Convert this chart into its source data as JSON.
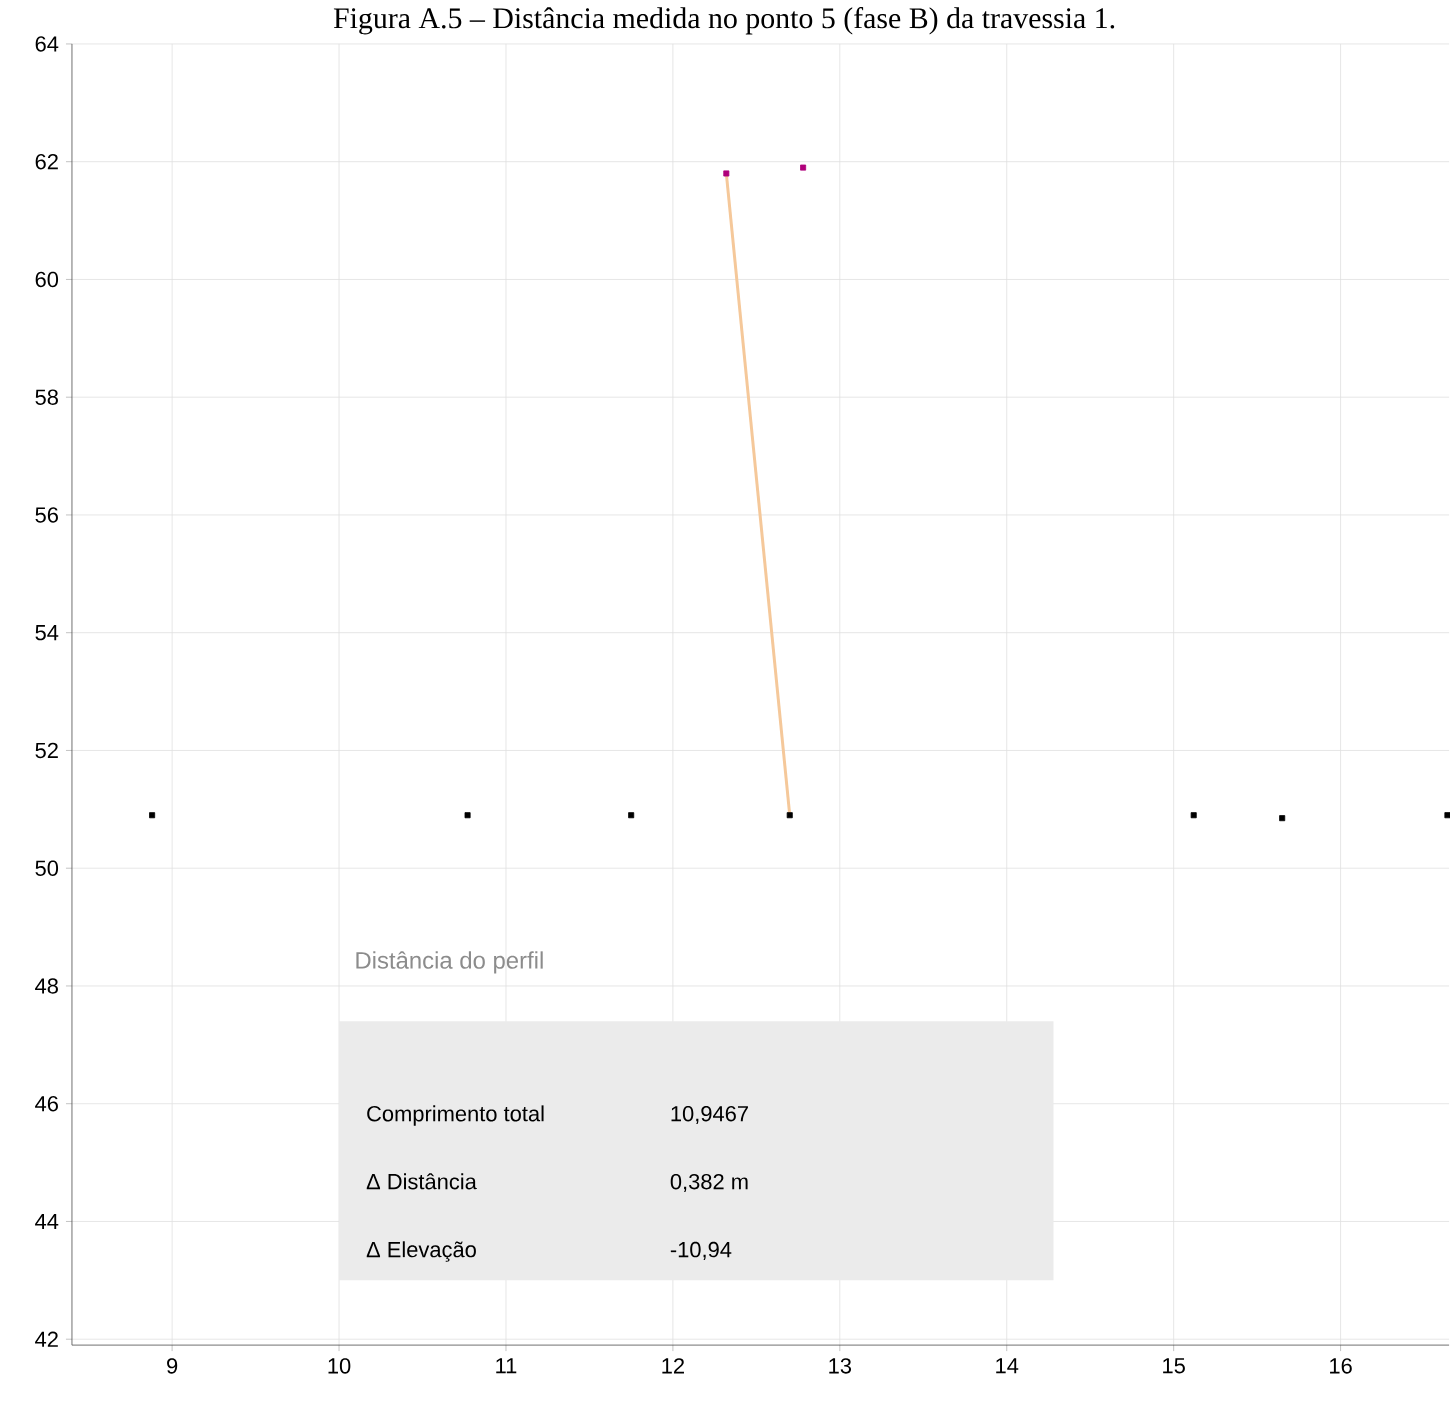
{
  "chart_data": {
    "type": "scatter",
    "title": "Figura A.5 – Distância medida no ponto 5 (fase B) da travessia 1.",
    "xlim": [
      8.4,
      16.65
    ],
    "ylim": [
      41.9,
      64
    ],
    "xticks": [
      9,
      10,
      11,
      12,
      13,
      14,
      15,
      16
    ],
    "yticks": [
      42,
      44,
      46,
      48,
      50,
      52,
      54,
      56,
      58,
      60,
      62,
      64
    ],
    "grid": true,
    "marker": "square",
    "series": [
      {
        "color": "#000000",
        "x": [
          8.88,
          10.77,
          11.75,
          12.7,
          15.12,
          15.65,
          16.64
        ],
        "values": [
          50.9,
          50.9,
          50.9,
          50.9,
          50.9,
          50.85,
          50.9
        ]
      },
      {
        "color": "#b0007a",
        "x": [
          12.32,
          12.78
        ],
        "values": [
          61.8,
          61.9
        ]
      },
      {
        "type": "line",
        "color": "#f5c89a",
        "marker": "none",
        "x": [
          12.32,
          12.7
        ],
        "values": [
          61.8,
          50.9
        ]
      }
    ],
    "annotations": [
      "Distância do perfil",
      "Comprimento total",
      "10,9467",
      "Δ Distância",
      "0,382 m",
      "Δ Elevação",
      "-10,94"
    ]
  }
}
